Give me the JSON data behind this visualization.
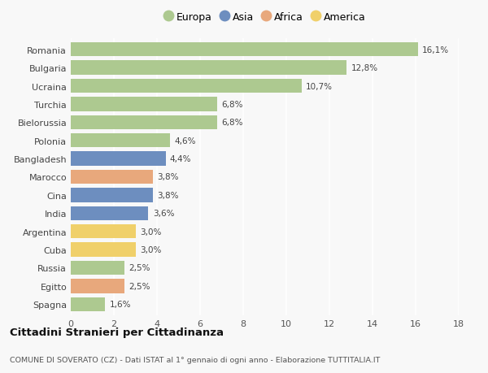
{
  "countries": [
    "Romania",
    "Bulgaria",
    "Ucraina",
    "Turchia",
    "Bielorussia",
    "Polonia",
    "Bangladesh",
    "Marocco",
    "Cina",
    "India",
    "Argentina",
    "Cuba",
    "Russia",
    "Egitto",
    "Spagna"
  ],
  "values": [
    16.1,
    12.8,
    10.7,
    6.8,
    6.8,
    4.6,
    4.4,
    3.8,
    3.8,
    3.6,
    3.0,
    3.0,
    2.5,
    2.5,
    1.6
  ],
  "labels": [
    "16,1%",
    "12,8%",
    "10,7%",
    "6,8%",
    "6,8%",
    "4,6%",
    "4,4%",
    "3,8%",
    "3,8%",
    "3,6%",
    "3,0%",
    "3,0%",
    "2,5%",
    "2,5%",
    "1,6%"
  ],
  "continents": [
    "Europa",
    "Europa",
    "Europa",
    "Europa",
    "Europa",
    "Europa",
    "Asia",
    "Africa",
    "Asia",
    "Asia",
    "America",
    "America",
    "Europa",
    "Africa",
    "Europa"
  ],
  "colors": {
    "Europa": "#adc990",
    "Asia": "#6d8ebf",
    "Africa": "#e8a87c",
    "America": "#f0d06a"
  },
  "legend_order": [
    "Europa",
    "Asia",
    "Africa",
    "America"
  ],
  "xlim": [
    0,
    18
  ],
  "xticks": [
    0,
    2,
    4,
    6,
    8,
    10,
    12,
    14,
    16,
    18
  ],
  "title": "Cittadini Stranieri per Cittadinanza",
  "subtitle": "COMUNE DI SOVERATO (CZ) - Dati ISTAT al 1° gennaio di ogni anno - Elaborazione TUTTITALIA.IT",
  "background_color": "#f8f8f8",
  "grid_color": "#ffffff",
  "bar_height": 0.78
}
